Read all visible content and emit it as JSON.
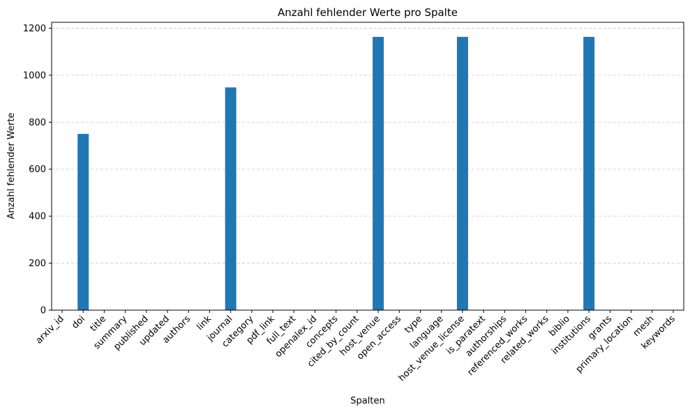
{
  "chart_data": {
    "type": "bar",
    "title": "Anzahl fehlender Werte pro Spalte",
    "xlabel": "Spalten",
    "ylabel": "Anzahl fehlender Werte",
    "categories": [
      "arxiv_id",
      "doi",
      "title",
      "summary",
      "published",
      "updated",
      "authors",
      "link",
      "journal",
      "category",
      "pdf_link",
      "full_text",
      "openalex_id",
      "concepts",
      "cited_by_count",
      "host_venue",
      "open_access",
      "type",
      "language",
      "host_venue_license",
      "is_paratext",
      "authorships",
      "referenced_works",
      "related_works",
      "biblio",
      "institutions",
      "grants",
      "primary_location",
      "mesh",
      "keywords"
    ],
    "values": [
      0,
      750,
      0,
      0,
      0,
      0,
      0,
      0,
      948,
      0,
      0,
      0,
      0,
      0,
      0,
      1163,
      0,
      0,
      0,
      1163,
      0,
      0,
      0,
      0,
      0,
      1163,
      0,
      0,
      0,
      0
    ],
    "ylim": [
      0,
      1225
    ],
    "yticks": [
      0,
      200,
      400,
      600,
      800,
      1000,
      1200
    ],
    "grid": "y-dashed",
    "bar_color": "#1f77b4",
    "grid_color": "#c8c8c8"
  }
}
